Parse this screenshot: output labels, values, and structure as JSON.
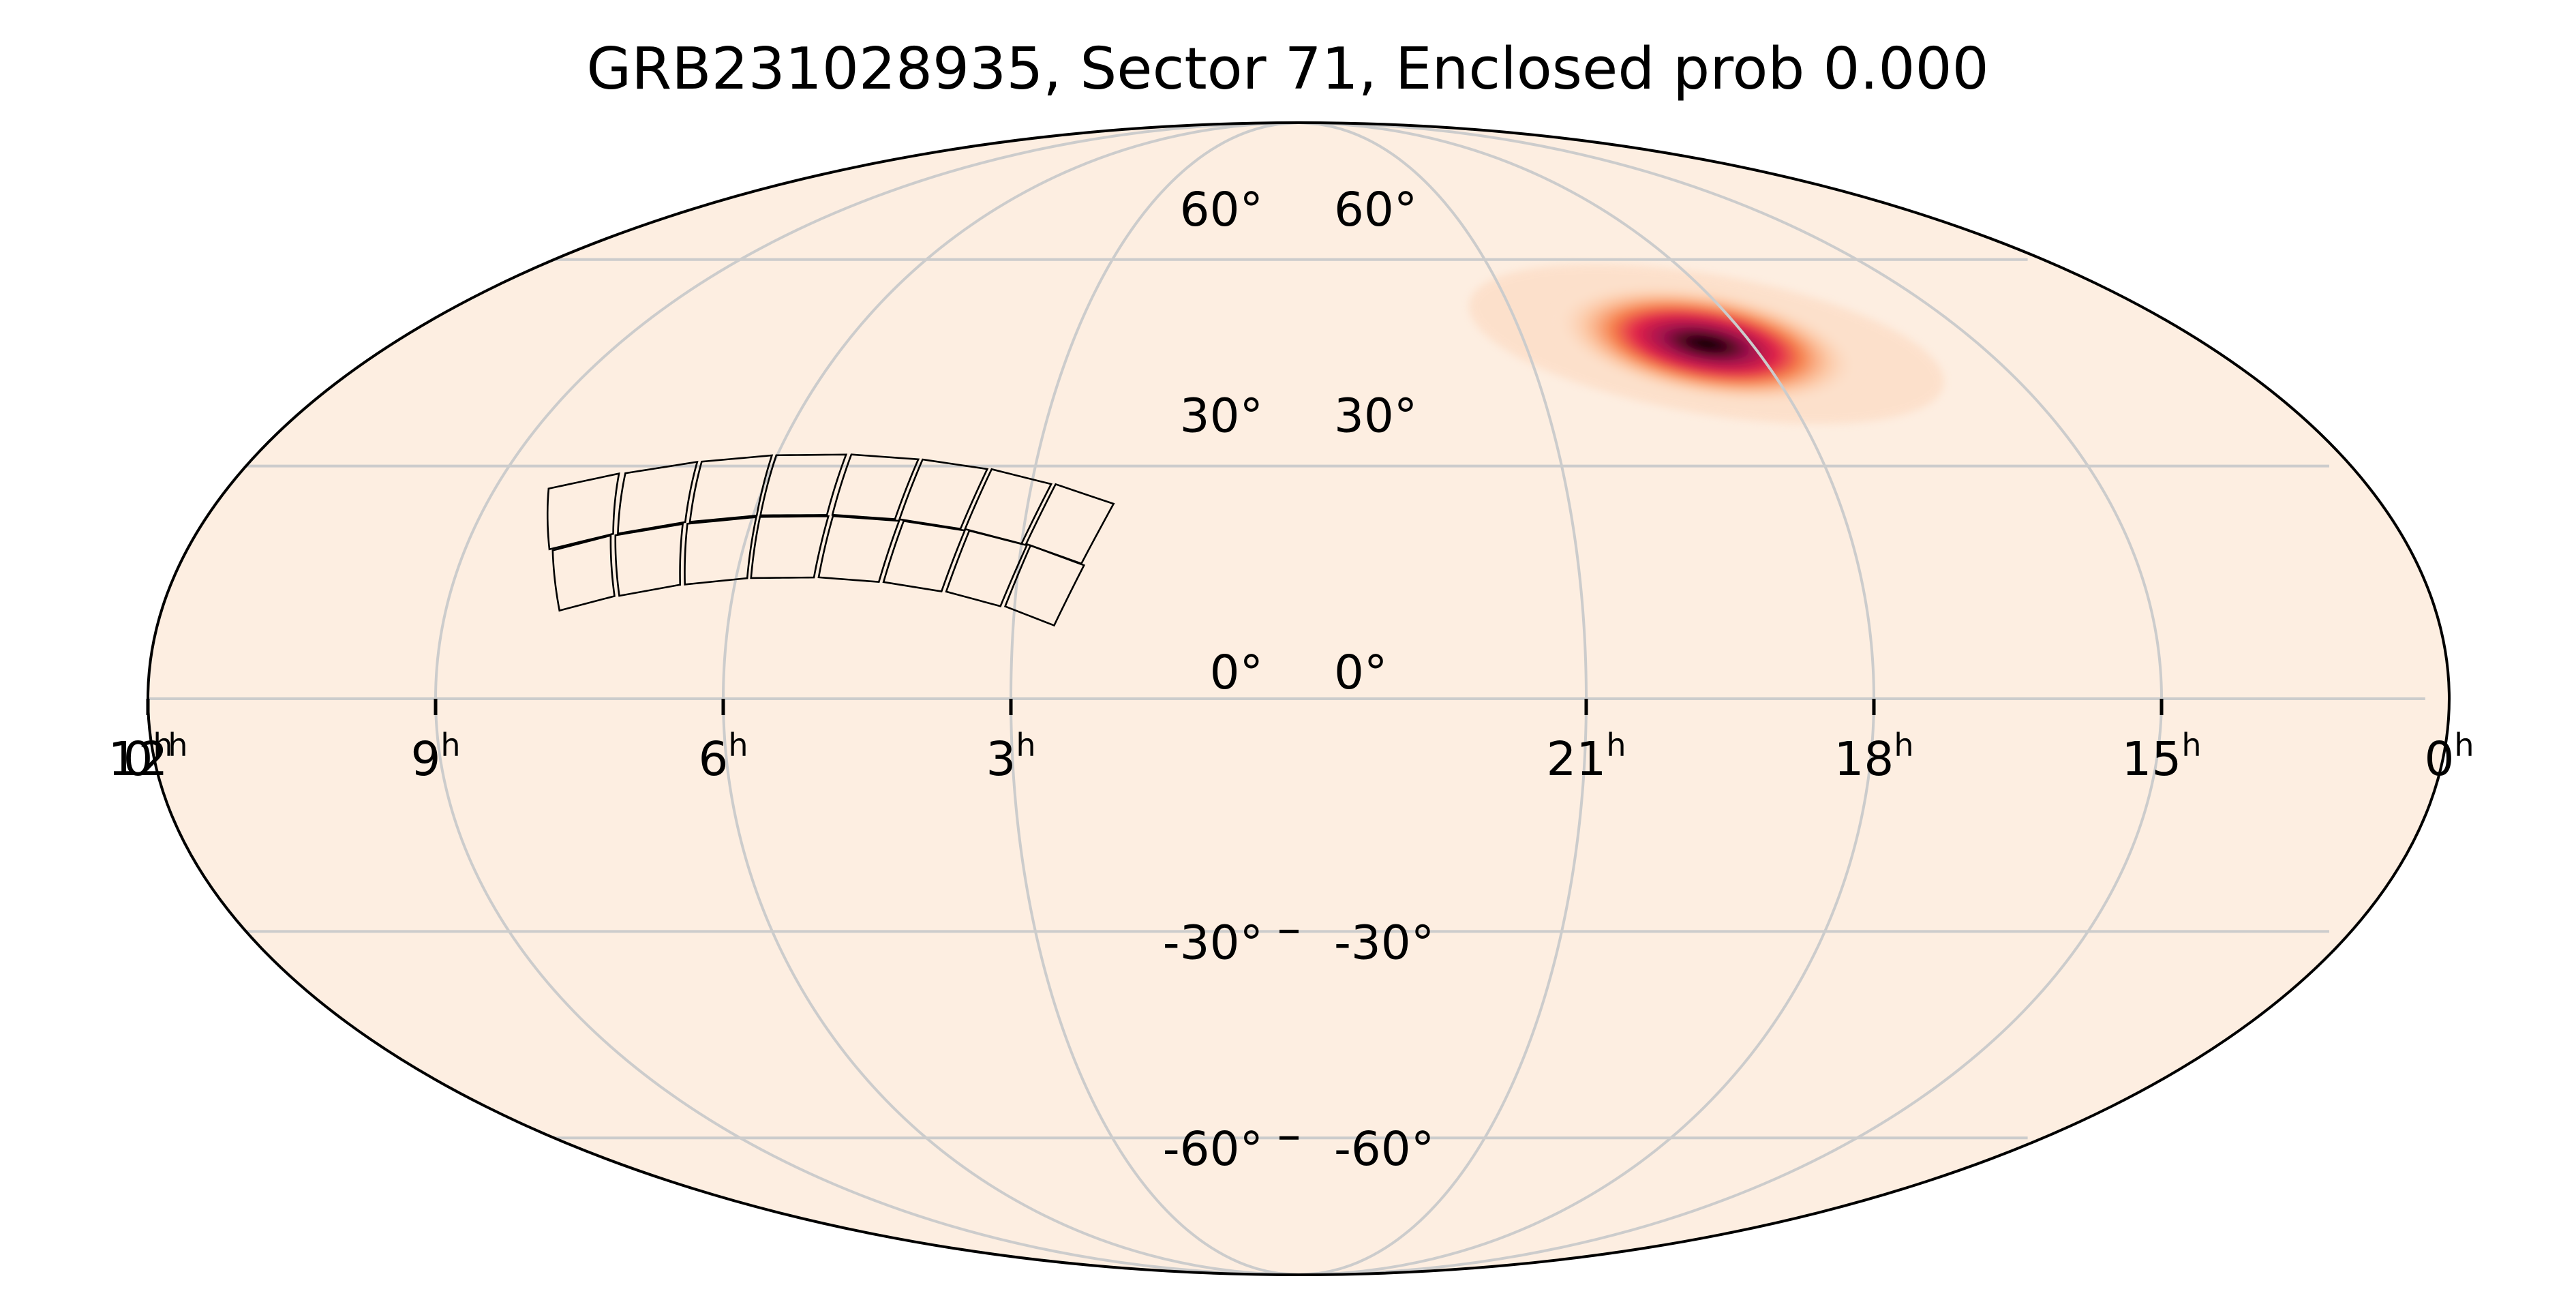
{
  "chart_data": {
    "type": "heatmap",
    "projection": "mollweide",
    "title": "GRB231028935, Sector 71, Enclosed prob 0.000",
    "ra_hour_ticks": [
      {
        "hour": 0,
        "label": "0",
        "sup": "h",
        "side": "left"
      },
      {
        "hour": 21,
        "label": "21",
        "sup": "h"
      },
      {
        "hour": 18,
        "label": "18",
        "sup": "h"
      },
      {
        "hour": 15,
        "label": "15",
        "sup": "h"
      },
      {
        "hour": 12,
        "label": "12",
        "sup": "h"
      },
      {
        "hour": 9,
        "label": "9",
        "sup": "h"
      },
      {
        "hour": 6,
        "label": "6",
        "sup": "h"
      },
      {
        "hour": 3,
        "label": "3",
        "sup": "h"
      },
      {
        "hour": 0,
        "label": "0",
        "sup": "h",
        "side": "right"
      }
    ],
    "dec_ticks_left": [
      "60°",
      "30°",
      "0°",
      "-30°",
      "-60°"
    ],
    "dec_ticks_right": [
      "60°",
      "30°",
      "0°",
      "-30°",
      "-60°"
    ],
    "dec_values": [
      60,
      30,
      0,
      -30,
      -60
    ],
    "ra_grid_hours": [
      21,
      18,
      15,
      12,
      9,
      6,
      3
    ],
    "dec_grid_deg": [
      60,
      30,
      0,
      -30,
      -60
    ],
    "background_color": "#fdeee1",
    "colormap": [
      "#fdeee1",
      "#fcb98e",
      "#f57a45",
      "#e0234a",
      "#a0124e",
      "#3d0516",
      "#000000"
    ],
    "probability_peak": {
      "ra_hours": 18.6,
      "dec_deg": 47,
      "sigma_major_deg": 7.5,
      "sigma_minor_deg": 3.2
    },
    "footprint_ccds": [
      [
        [
          8.4,
          27
        ],
        [
          7.7,
          29
        ],
        [
          7.46,
          21.07
        ],
        [
          8.09,
          19.06
        ]
      ],
      [
        [
          7.63,
          29.04
        ],
        [
          6.88,
          30.56
        ],
        [
          6.72,
          22.6
        ],
        [
          7.41,
          21.1
        ]
      ],
      [
        [
          6.83,
          30.59
        ],
        [
          6.06,
          31.43
        ],
        [
          5.96,
          23.45
        ],
        [
          6.67,
          22.63
        ]
      ],
      [
        [
          6.01,
          31.45
        ],
        [
          5.21,
          31.54
        ],
        [
          5.19,
          23.53
        ],
        [
          5.92,
          23.48
        ]
      ],
      [
        [
          5.15,
          31.55
        ],
        [
          4.36,
          30.9
        ],
        [
          4.43,
          22.98
        ],
        [
          5.13,
          23.55
        ]
      ],
      [
        [
          4.31,
          30.88
        ],
        [
          3.54,
          29.6
        ],
        [
          3.69,
          21.71
        ],
        [
          4.38,
          22.96
        ]
      ],
      [
        [
          3.49,
          29.58
        ],
        [
          2.78,
          27.6
        ],
        [
          3.0,
          19.78
        ],
        [
          3.64,
          21.69
        ]
      ],
      [
        [
          2.73,
          27.58
        ],
        [
          2.05,
          25.0
        ],
        [
          2.33,
          17.22
        ],
        [
          2.95,
          19.76
        ]
      ],
      [
        [
          8.05,
          18.92
        ],
        [
          7.48,
          20.85
        ],
        [
          7.25,
          13.04
        ],
        [
          7.8,
          11.2
        ]
      ],
      [
        [
          7.43,
          20.88
        ],
        [
          6.74,
          22.35
        ],
        [
          6.58,
          14.5
        ],
        [
          7.2,
          13.08
        ]
      ],
      [
        [
          6.69,
          22.38
        ],
        [
          5.96,
          23.25
        ],
        [
          5.88,
          15.34
        ],
        [
          6.53,
          14.53
        ]
      ],
      [
        [
          5.92,
          23.27
        ],
        [
          5.17,
          23.36
        ],
        [
          5.17,
          15.43
        ],
        [
          5.84,
          15.36
        ]
      ],
      [
        [
          5.12,
          23.38
        ],
        [
          4.38,
          22.76
        ],
        [
          4.47,
          14.86
        ],
        [
          5.12,
          15.45
        ]
      ],
      [
        [
          4.33,
          22.74
        ],
        [
          3.64,
          21.5
        ],
        [
          3.79,
          13.64
        ],
        [
          4.42,
          14.84
        ]
      ],
      [
        [
          3.59,
          21.48
        ],
        [
          2.94,
          19.58
        ],
        [
          3.15,
          11.75
        ],
        [
          3.74,
          13.62
        ]
      ],
      [
        [
          2.9,
          19.56
        ],
        [
          2.3,
          17.0
        ],
        [
          2.57,
          9.3
        ],
        [
          3.1,
          11.73
        ]
      ]
    ]
  }
}
